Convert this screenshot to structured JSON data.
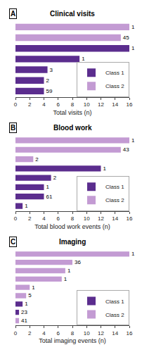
{
  "chart_data": [
    {
      "type": "bar",
      "orientation": "horizontal",
      "title": "Clinical visits",
      "xlabel": "Total visits (n)",
      "annotations": [
        "A"
      ],
      "categories": [
        null,
        null,
        null,
        null,
        null,
        null,
        null
      ],
      "series": [
        {
          "name": "Class 1",
          "color": "#5B2D8E",
          "values": [
            null,
            null,
            16.0,
            9.0,
            4.5,
            4.0,
            4.0
          ],
          "counts": [
            null,
            null,
            1,
            1,
            3,
            2,
            59
          ]
        },
        {
          "name": "Class 2",
          "color": "#C39BD3",
          "values": [
            16.0,
            14.8,
            null,
            null,
            null,
            null,
            null
          ],
          "counts": [
            1,
            45,
            null,
            null,
            null,
            null,
            null
          ]
        }
      ],
      "xlim": [
        0,
        16
      ],
      "xticks": [
        0,
        2,
        4,
        6,
        8,
        10,
        12,
        14,
        16
      ],
      "grid": false,
      "legend": "lower right",
      "tick_labels": "x"
    },
    {
      "type": "bar",
      "orientation": "horizontal",
      "title": "Blood work",
      "xlabel": "Total blood work events (n)",
      "annotations": [
        "B"
      ],
      "categories": [
        null,
        null,
        null,
        null,
        null,
        null,
        null,
        null
      ],
      "series": [
        {
          "name": "Class 1",
          "color": "#5B2D8E",
          "values": [
            null,
            null,
            null,
            12.0,
            5.0,
            4.0,
            4.0,
            1.0
          ],
          "counts": [
            null,
            null,
            null,
            1,
            2,
            1,
            61,
            1
          ]
        },
        {
          "name": "Class 2",
          "color": "#C39BD3",
          "values": [
            16.0,
            14.8,
            2.5,
            null,
            null,
            null,
            null,
            null
          ],
          "counts": [
            1,
            43,
            2,
            null,
            null,
            null,
            null,
            null
          ]
        }
      ],
      "xlim": [
        0,
        16
      ],
      "xticks": [
        0,
        2,
        4,
        6,
        8,
        10,
        12,
        14,
        16
      ],
      "grid": false,
      "legend": "lower right",
      "tick_labels": "x"
    },
    {
      "type": "bar",
      "orientation": "horizontal",
      "title": "Imaging",
      "xlabel": "Total imaging events (n)",
      "annotations": [
        "C"
      ],
      "categories": [
        null,
        null,
        null,
        null,
        null,
        null,
        null,
        null,
        null
      ],
      "series": [
        {
          "name": "Class 1",
          "color": "#5B2D8E",
          "values": [
            null,
            null,
            null,
            null,
            null,
            null,
            1.0,
            0.5,
            null
          ],
          "counts": [
            null,
            null,
            null,
            null,
            null,
            null,
            1,
            23,
            null
          ]
        },
        {
          "name": "Class 2",
          "color": "#C39BD3",
          "values": [
            16.0,
            8.0,
            7.0,
            6.5,
            2.0,
            1.5,
            null,
            null,
            0.5
          ],
          "counts": [
            1,
            36,
            1,
            1,
            1,
            5,
            null,
            null,
            41
          ]
        }
      ],
      "xlim": [
        0,
        16
      ],
      "xticks": [
        0,
        2,
        4,
        6,
        8,
        10,
        12,
        14,
        16
      ],
      "grid": false,
      "legend": "lower right",
      "tick_labels": "x"
    }
  ]
}
